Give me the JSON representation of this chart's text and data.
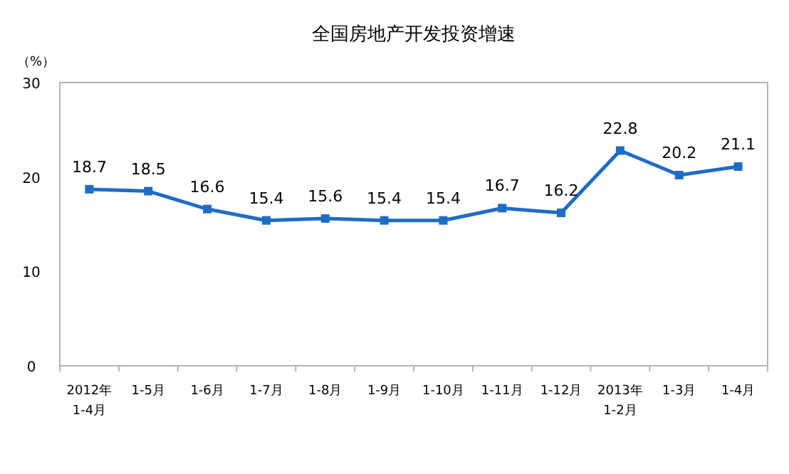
{
  "chart_data": {
    "type": "line",
    "title": "全国房地产开发投资增速",
    "ylabel": "（%）",
    "categories": [
      "2012年\n1-4月",
      "1-5月",
      "1-6月",
      "1-7月",
      "1-8月",
      "1-9月",
      "1-10月",
      "1-11月",
      "1-12月",
      "2013年\n1-2月",
      "1-3月",
      "1-4月"
    ],
    "series": [
      {
        "color": "#1f6cc4",
        "values": [
          18.7,
          18.5,
          16.6,
          15.4,
          15.6,
          15.4,
          15.4,
          16.7,
          16.2,
          22.8,
          20.2,
          21.1
        ]
      }
    ],
    "ylim": [
      0,
      30
    ],
    "yticks": [
      0,
      10,
      20,
      30
    ],
    "marker": "square",
    "line_style": "solid",
    "data_labels": true,
    "grid": false
  }
}
